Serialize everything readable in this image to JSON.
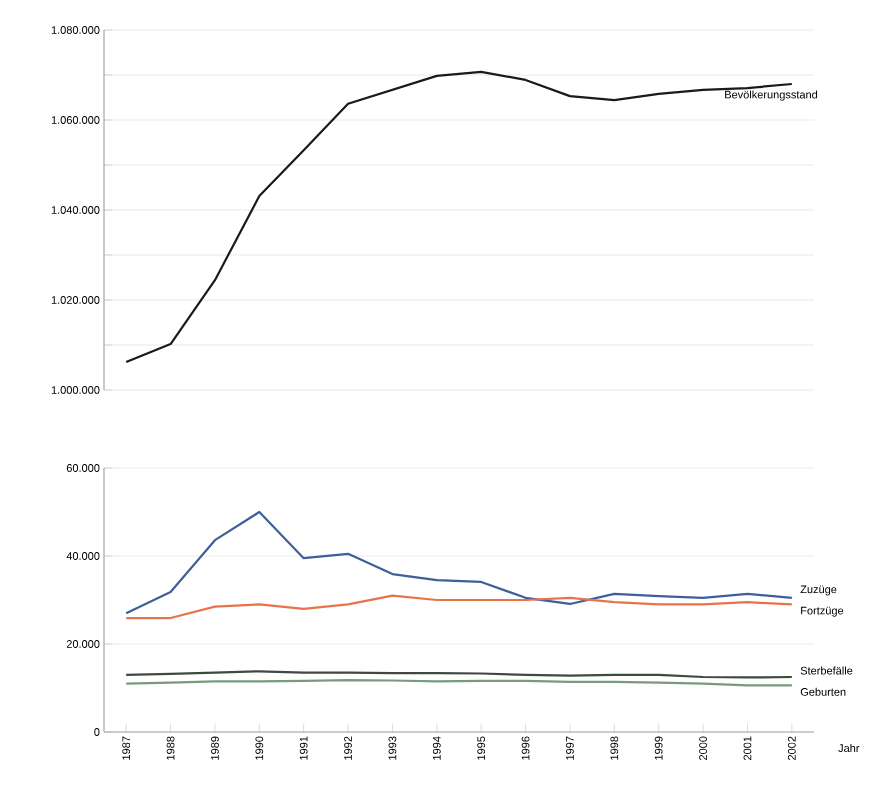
{
  "chart_data": [
    {
      "type": "line",
      "categories": [
        "1987",
        "1988",
        "1989",
        "1990",
        "1991",
        "1992",
        "1993",
        "1994",
        "1995",
        "1996",
        "1997",
        "1998",
        "1999",
        "2000",
        "2001",
        "2002"
      ],
      "ylim": [
        1000000,
        1080000
      ],
      "yticks": [
        {
          "value": 1000000,
          "label": "1.000.000"
        },
        {
          "value": 1010000,
          "label": null
        },
        {
          "value": 1020000,
          "label": "1.020.000"
        },
        {
          "value": 1030000,
          "label": null
        },
        {
          "value": 1040000,
          "label": "1.040.000"
        },
        {
          "value": 1050000,
          "label": null
        },
        {
          "value": 1060000,
          "label": "1.060.000"
        },
        {
          "value": 1070000,
          "label": null
        },
        {
          "value": 1080000,
          "label": "1.080.000"
        }
      ],
      "grid": "y",
      "tick_labels": "y",
      "series": [
        {
          "name": "Bevölkerungsstand",
          "color": "#1a1a1a",
          "values": [
            1006200,
            1010200,
            1024400,
            1043100,
            1053300,
            1063600,
            1066700,
            1069800,
            1070700,
            1068900,
            1065300,
            1064400,
            1065800,
            1066700,
            1067100,
            1068000
          ]
        }
      ]
    },
    {
      "type": "line",
      "categories": [
        "1987",
        "1988",
        "1989",
        "1990",
        "1991",
        "1992",
        "1993",
        "1994",
        "1995",
        "1996",
        "1997",
        "1998",
        "1999",
        "2000",
        "2001",
        "2002"
      ],
      "xlabel": "Jahr",
      "ylim": [
        0,
        60000
      ],
      "yticks": [
        {
          "value": 0,
          "label": "0"
        },
        {
          "value": 20000,
          "label": "20.000"
        },
        {
          "value": 40000,
          "label": "40.000"
        },
        {
          "value": 60000,
          "label": "60.000"
        }
      ],
      "grid": "y",
      "series": [
        {
          "name": "Zuzüge",
          "color": "#3f5f9a",
          "values": [
            27000,
            31800,
            43600,
            50000,
            39500,
            40500,
            35900,
            34500,
            34100,
            30500,
            29100,
            31400,
            30900,
            30500,
            31400,
            30500
          ]
        },
        {
          "name": "Fortzüge",
          "color": "#e8734a",
          "values": [
            25900,
            25900,
            28500,
            29000,
            28000,
            29000,
            31000,
            30000,
            30000,
            30000,
            30500,
            29500,
            29000,
            29000,
            29500,
            29000
          ]
        },
        {
          "name": "Sterbefälle",
          "color": "#3d4a3d",
          "values": [
            13000,
            13200,
            13500,
            13800,
            13500,
            13500,
            13400,
            13400,
            13300,
            13000,
            12800,
            13000,
            13000,
            12500,
            12400,
            12500
          ]
        },
        {
          "name": "Geburten",
          "color": "#7a9a7a",
          "values": [
            11000,
            11200,
            11500,
            11500,
            11600,
            11800,
            11700,
            11500,
            11600,
            11600,
            11400,
            11400,
            11200,
            11000,
            10600,
            10600
          ]
        }
      ]
    }
  ]
}
